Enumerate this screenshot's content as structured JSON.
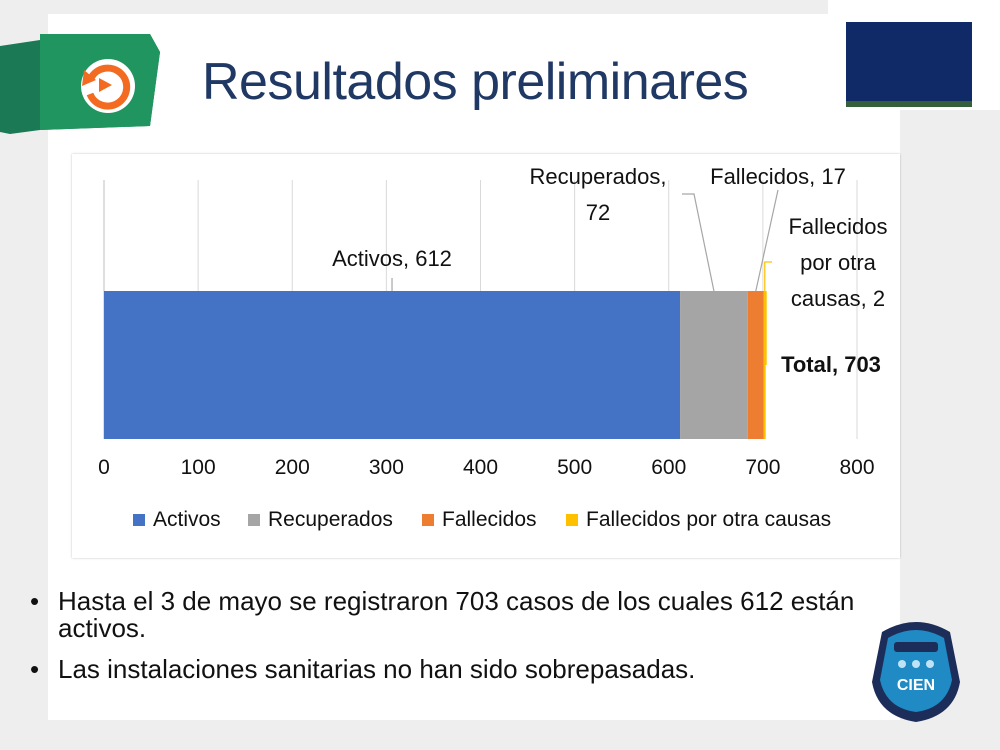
{
  "slide": {
    "title": "Resultados preliminares",
    "bullets": [
      "Hasta el 3 de mayo se registraron 703 casos de los cuales 612 están activos.",
      "Las instalaciones sanitarias no han sido sobrepasadas."
    ],
    "bullet_glyph": "•",
    "logo_text": "CIEN",
    "icons": [
      "refresh-icon",
      "cien-logo-icon"
    ],
    "colors": {
      "title": "#1f3864",
      "banner": "#1b7a55",
      "refresh": "#f26b21",
      "navy": "#0f2a66"
    }
  },
  "chart_data": {
    "type": "bar",
    "orientation": "horizontal",
    "stacked": true,
    "categories": [
      ""
    ],
    "series": [
      {
        "name": "Activos",
        "values": [
          612
        ],
        "color": "#4472c4",
        "data_label": "Activos, 612"
      },
      {
        "name": "Recuperados",
        "values": [
          72
        ],
        "color": "#a5a5a5",
        "data_label": "Recuperados, 72"
      },
      {
        "name": "Fallecidos",
        "values": [
          17
        ],
        "color": "#ed7d31",
        "data_label": "Fallecidos, 17"
      },
      {
        "name": "Fallecidos por otra causas",
        "values": [
          2
        ],
        "color": "#ffc000",
        "data_label": "Fallecidos por otra causas, 2"
      }
    ],
    "total_label": "Total, 703",
    "xlim": [
      0,
      800
    ],
    "x_ticks": [
      "0",
      "100",
      "200",
      "300",
      "400",
      "500",
      "600",
      "700",
      "800"
    ],
    "grid": true,
    "legend": "bottom"
  }
}
